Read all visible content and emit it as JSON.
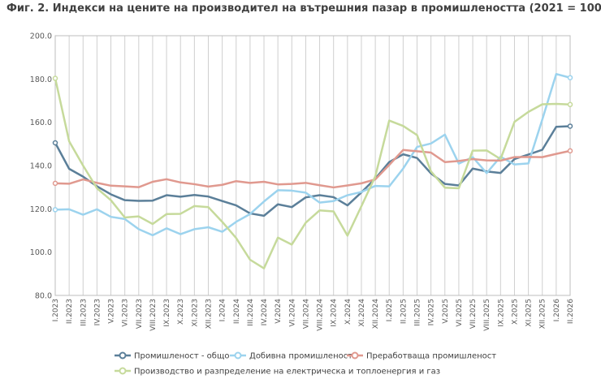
{
  "chart_data": {
    "type": "line",
    "title": "Фиг. 2. Индекси на цените на производител на вътрешния пазар  в промишлеността  (2021 = 100)",
    "ylim": [
      80,
      200
    ],
    "yticks": [
      "80.0",
      "100.0",
      "120.0",
      "140.0",
      "160.0",
      "180.0",
      "200.0"
    ],
    "grid": "vertical",
    "legend_position": "bottom",
    "categories": [
      "I.2023",
      "II.2023",
      "III.2023",
      "IV.2023",
      "V.2023",
      "VI.2023",
      "VII.2023",
      "VIII.2023",
      "IX.2023",
      "X.2023",
      "XI.2023",
      "XII.2023",
      "I.2024",
      "II.2024",
      "III.2024",
      "IV.2024",
      "V.2024",
      "VI.2024",
      "VII.2024",
      "VIII.2024",
      "IX.2024",
      "X.2024",
      "XI.2024",
      "XII.2024",
      "I.2025",
      "II.2025",
      "III.2025",
      "IV.2025",
      "V.2025",
      "VI.2025",
      "VII.2025",
      "VIII.2025",
      "IX.2025",
      "X.2025",
      "XI.2025",
      "XII.2025",
      "I.2026",
      "II.2026"
    ],
    "series": [
      {
        "name": "Промишленост - общо",
        "color": "#5b7f99",
        "values": [
          150.5,
          138.5,
          134.9,
          130.4,
          126.7,
          124.0,
          123.7,
          123.8,
          126.3,
          125.6,
          126.4,
          125.7,
          123.6,
          121.6,
          117.9,
          116.8,
          122.1,
          120.8,
          125.3,
          126.3,
          125.4,
          121.6,
          127.6,
          134.0,
          141.6,
          145.2,
          143.5,
          136.4,
          131.5,
          130.8,
          138.6,
          137.3,
          136.6,
          143.0,
          145.1,
          147.3,
          157.9,
          158.2
        ]
      },
      {
        "name": "Добивна промишленост",
        "color": "#9cd3ee",
        "values": [
          119.6,
          119.8,
          117.3,
          119.8,
          116.3,
          115.3,
          110.6,
          107.8,
          111.0,
          108.3,
          110.6,
          111.5,
          109.4,
          114.0,
          117.6,
          123.4,
          128.6,
          128.4,
          127.5,
          122.9,
          123.6,
          126.3,
          127.8,
          130.6,
          130.4,
          138.6,
          148.6,
          150.2,
          154.3,
          140.9,
          143.9,
          136.5,
          144.1,
          140.5,
          141.0,
          161.3,
          182.3,
          180.6
        ]
      },
      {
        "name": "Преработваща промишленост",
        "color": "#e0998f",
        "values": [
          131.8,
          131.6,
          133.6,
          132.0,
          130.7,
          130.4,
          130.0,
          132.5,
          133.7,
          132.2,
          131.4,
          130.3,
          131.1,
          132.8,
          132.0,
          132.5,
          131.3,
          131.5,
          132.0,
          130.9,
          129.9,
          130.8,
          131.8,
          133.6,
          140.3,
          147.2,
          146.6,
          146.0,
          141.6,
          142.1,
          143.0,
          142.4,
          142.3,
          143.9,
          144.0,
          143.9,
          145.4,
          146.8
        ]
      },
      {
        "name": "Производство и разпределение на електрическа и топлоенергия и газ",
        "color": "#c6da9b",
        "values": [
          180.3,
          151.2,
          140.0,
          129.5,
          124.0,
          116.0,
          116.5,
          113.0,
          117.6,
          117.7,
          121.3,
          120.8,
          114.0,
          106.5,
          96.5,
          92.5,
          106.7,
          103.5,
          113.6,
          119.3,
          118.8,
          107.6,
          121.2,
          135.0,
          160.8,
          158.3,
          154.1,
          137.3,
          129.8,
          129.5,
          146.9,
          147.0,
          143.0,
          160.2,
          164.8,
          168.3,
          168.5,
          168.2
        ]
      }
    ]
  }
}
